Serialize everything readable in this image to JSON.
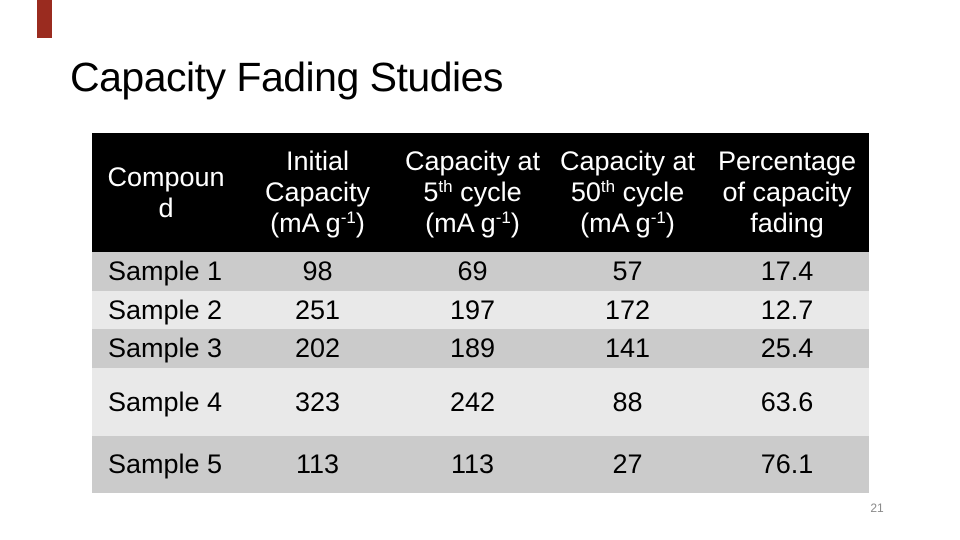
{
  "slide": {
    "title": "Capacity Fading Studies",
    "page_number": "21"
  },
  "colors": {
    "accent_bar": "#9A2B1F",
    "header_bg": "#000000",
    "header_text": "#FFFFFF",
    "row_medium": "#CBCBCB",
    "row_light": "#E9E9E9"
  },
  "table": {
    "header": {
      "compound": {
        "line1": "Compoun",
        "line2": "d"
      },
      "initial": {
        "line1": "Initial",
        "line2": "Capacity",
        "unit_pre": "(mA g",
        "unit_sup": "-1",
        "unit_post": ")"
      },
      "cycle5": {
        "line1": "Capacity at",
        "num": "5",
        "sup": "th",
        "rest": " cycle",
        "unit_pre": "(mA g",
        "unit_sup": "-1",
        "unit_post": ")"
      },
      "cycle50": {
        "line1": "Capacity at",
        "num": "50",
        "sup": "th",
        "rest": " cycle",
        "unit_pre": "(mA g",
        "unit_sup": "-1",
        "unit_post": ")"
      },
      "fading": {
        "line1": "Percentage",
        "line2": "of capacity",
        "line3": "fading"
      }
    },
    "rows": [
      {
        "compound": "Sample 1",
        "initial": "98",
        "cycle5": "69",
        "cycle50": "57",
        "fading": "17.4"
      },
      {
        "compound": "Sample 2",
        "initial": "251",
        "cycle5": "197",
        "cycle50": "172",
        "fading": "12.7"
      },
      {
        "compound": "Sample 3",
        "initial": "202",
        "cycle5": "189",
        "cycle50": "141",
        "fading": "25.4"
      },
      {
        "compound": "Sample 4",
        "initial": "323",
        "cycle5": "242",
        "cycle50": "88",
        "fading": "63.6"
      },
      {
        "compound": "Sample 5",
        "initial": "113",
        "cycle5": "113",
        "cycle50": "27",
        "fading": "76.1"
      }
    ]
  }
}
